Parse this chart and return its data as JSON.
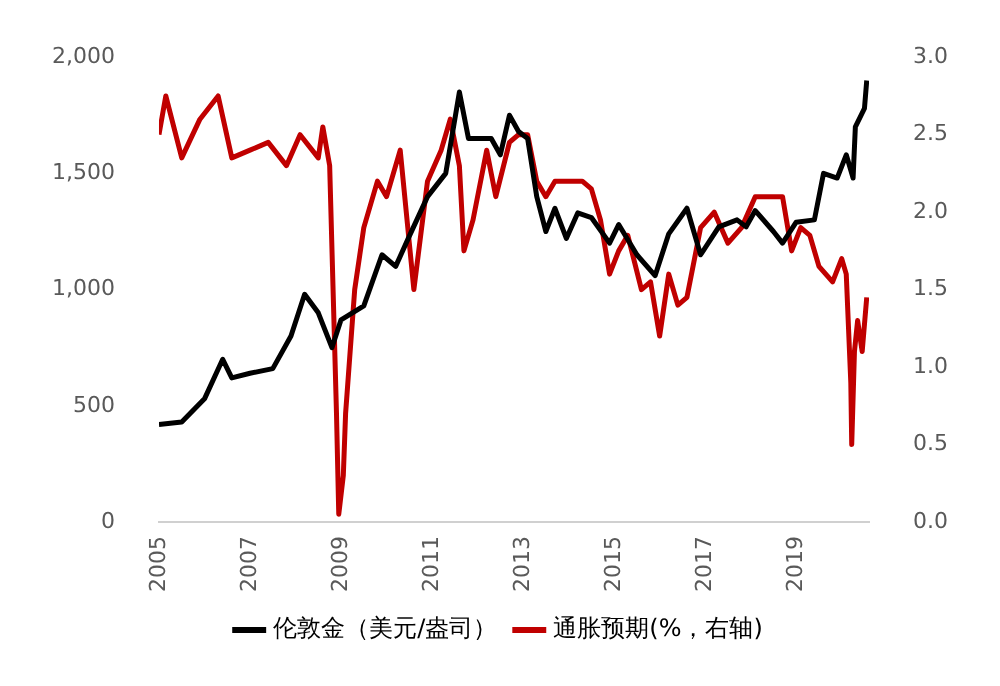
{
  "chart_data": {
    "type": "line",
    "xlim": [
      2005,
      2020.6
    ],
    "xticks": [
      2005,
      2007,
      2009,
      2011,
      2013,
      2015,
      2017,
      2019
    ],
    "ylim": [
      0,
      2000
    ],
    "yticks": [
      {
        "value": 0,
        "label": "0"
      },
      {
        "value": 500,
        "label": "500"
      },
      {
        "value": 1000,
        "label": "1,000"
      },
      {
        "value": 1500,
        "label": "1,500"
      },
      {
        "value": 2000,
        "label": "2,000"
      }
    ],
    "y2lim": [
      0,
      3
    ],
    "y2ticks": [
      {
        "value": 0,
        "label": "0.0"
      },
      {
        "value": 0.5,
        "label": "0.5"
      },
      {
        "value": 1,
        "label": "1.0"
      },
      {
        "value": 1.5,
        "label": "1.5"
      },
      {
        "value": 2,
        "label": "2.0"
      },
      {
        "value": 2.5,
        "label": "2.5"
      },
      {
        "value": 3,
        "label": "3.0"
      }
    ],
    "grid": false,
    "legend": "bottom",
    "marker": "none",
    "line_style": "solid",
    "series": [
      {
        "name": "伦敦金（美元/盎司）",
        "color": "#000000",
        "x": [
          2005,
          2005.5,
          2006,
          2006.4,
          2006.6,
          2007,
          2007.5,
          2007.9,
          2008.2,
          2008.5,
          2008.8,
          2009,
          2009.5,
          2009.9,
          2010.2,
          2010.5,
          2010.9,
          2011.3,
          2011.6,
          2011.8,
          2012,
          2012.3,
          2012.5,
          2012.7,
          2012.9,
          2013.1,
          2013.3,
          2013.5,
          2013.7,
          2013.95,
          2014.2,
          2014.5,
          2014.9,
          2015.1,
          2015.5,
          2015.9,
          2016.2,
          2016.6,
          2016.9,
          2017.3,
          2017.7,
          2017.9,
          2018.1,
          2018.5,
          2018.7,
          2019,
          2019.4,
          2019.6,
          2019.9,
          2020.1,
          2020.25,
          2020.3,
          2020.5,
          2020.55
        ],
        "values": [
          420,
          430,
          530,
          700,
          620,
          640,
          660,
          800,
          980,
          900,
          750,
          870,
          930,
          1150,
          1100,
          1230,
          1400,
          1500,
          1850,
          1650,
          1650,
          1650,
          1580,
          1750,
          1680,
          1650,
          1400,
          1250,
          1350,
          1220,
          1330,
          1310,
          1200,
          1280,
          1150,
          1060,
          1240,
          1350,
          1150,
          1270,
          1300,
          1270,
          1340,
          1250,
          1200,
          1290,
          1300,
          1500,
          1480,
          1580,
          1480,
          1700,
          1780,
          1900
        ]
      },
      {
        "name": "通胀预期(%，右轴)",
        "color": "#c00000",
        "axis": "y2",
        "x": [
          2005,
          2005.15,
          2005.5,
          2005.9,
          2006.3,
          2006.6,
          2007,
          2007.4,
          2007.8,
          2008.1,
          2008.5,
          2008.6,
          2008.75,
          2008.9,
          2008.95,
          2009.05,
          2009.1,
          2009.3,
          2009.5,
          2009.8,
          2010,
          2010.3,
          2010.5,
          2010.6,
          2010.9,
          2011.2,
          2011.4,
          2011.6,
          2011.7,
          2011.9,
          2012.2,
          2012.4,
          2012.7,
          2012.9,
          2013.1,
          2013.3,
          2013.5,
          2013.7,
          2014,
          2014.3,
          2014.5,
          2014.7,
          2014.9,
          2015.1,
          2015.3,
          2015.6,
          2015.8,
          2016,
          2016.2,
          2016.4,
          2016.6,
          2016.9,
          2017.2,
          2017.5,
          2017.8,
          2018.1,
          2018.4,
          2018.7,
          2018.9,
          2019.1,
          2019.3,
          2019.5,
          2019.8,
          2020,
          2020.1,
          2020.2,
          2020.22,
          2020.28,
          2020.35,
          2020.45,
          2020.55
        ],
        "values": [
          2.5,
          2.75,
          2.35,
          2.6,
          2.75,
          2.35,
          2.4,
          2.45,
          2.3,
          2.5,
          2.35,
          2.55,
          2.3,
          0.7,
          0.05,
          0.3,
          0.7,
          1.5,
          1.9,
          2.2,
          2.1,
          2.4,
          1.8,
          1.5,
          2.2,
          2.4,
          2.6,
          2.3,
          1.75,
          1.95,
          2.4,
          2.1,
          2.45,
          2.5,
          2.5,
          2.2,
          2.1,
          2.2,
          2.2,
          2.2,
          2.15,
          1.95,
          1.6,
          1.75,
          1.85,
          1.5,
          1.55,
          1.2,
          1.6,
          1.4,
          1.45,
          1.9,
          2,
          1.8,
          1.9,
          2.1,
          2.1,
          2.1,
          1.75,
          1.9,
          1.85,
          1.65,
          1.55,
          1.7,
          1.6,
          0.9,
          0.5,
          1.1,
          1.3,
          1.1,
          1.45
        ]
      }
    ]
  }
}
